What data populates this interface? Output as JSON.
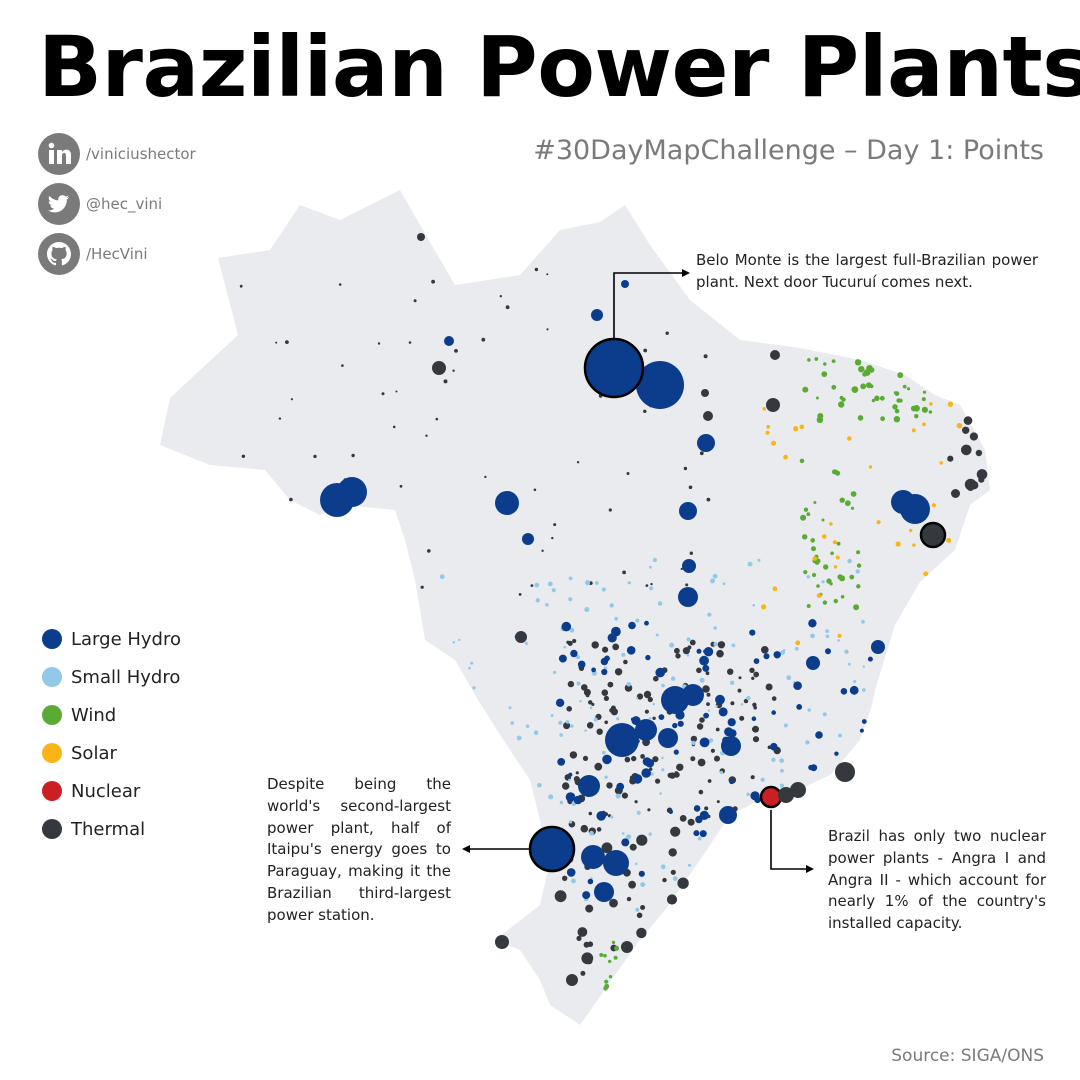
{
  "title": "Brazilian Power Plants",
  "subtitle": "#30DayMapChallenge – Day 1: Points",
  "social": [
    {
      "icon": "linkedin-icon",
      "handle": "/viniciushector"
    },
    {
      "icon": "twitter-icon",
      "handle": "@hec_vini"
    },
    {
      "icon": "github-icon",
      "handle": "/HecVini"
    }
  ],
  "legend": [
    {
      "key": "large_hydro",
      "label": "Large Hydro",
      "color": "#0b3d8c"
    },
    {
      "key": "small_hydro",
      "label": "Small Hydro",
      "color": "#93c9e8"
    },
    {
      "key": "wind",
      "label": "Wind",
      "color": "#5aab34"
    },
    {
      "key": "solar",
      "label": "Solar",
      "color": "#fbb416"
    },
    {
      "key": "nuclear",
      "label": "Nuclear",
      "color": "#cc1f24"
    },
    {
      "key": "thermal",
      "label": "Thermal",
      "color": "#35393f"
    }
  ],
  "colors": {
    "land": "#e9ebef",
    "highlight_stroke": "#000000"
  },
  "annotations": {
    "belo_monte": "Belo Monte is the largest full-Brazilian power plant. Next door Tucuruí comes next.",
    "itaipu": "Despite being the world's second-largest power plant, half of Itaipu's energy goes to Paraguay, making it the Brazilian third-largest power station.",
    "nuclear": "Brazil has only two nuclear power plants - Angra I and Angra II - which account for nearly 1% of the country's installed capacity."
  },
  "source": "Source: SIGA/ONS"
}
